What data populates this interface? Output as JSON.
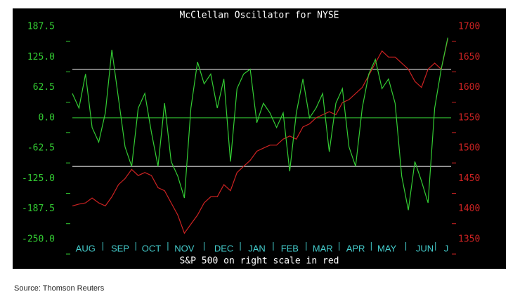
{
  "chart_data": {
    "type": "line",
    "title": "McClellan Oscillator for NYSE",
    "x_label": "S&P 500 on right scale in red",
    "xlim": [
      0,
      230
    ],
    "xticks": [
      {
        "value": 8,
        "label": "AUG"
      },
      {
        "value": 29,
        "label": "SEP"
      },
      {
        "value": 48,
        "label": "OCT"
      },
      {
        "value": 68,
        "label": "NOV"
      },
      {
        "value": 92,
        "label": "DEC"
      },
      {
        "value": 112,
        "label": "JAN"
      },
      {
        "value": 132,
        "label": "FEB"
      },
      {
        "value": 152,
        "label": "MAR"
      },
      {
        "value": 172,
        "label": "APR"
      },
      {
        "value": 191,
        "label": "MAY"
      },
      {
        "value": 214,
        "label": "JUN"
      },
      {
        "value": 227,
        "label": "J"
      }
    ],
    "ylim": [
      -250,
      187.5
    ],
    "yticks": [
      187.5,
      {
        "value": 125,
        "label": "125.0"
      },
      62.5,
      {
        "value": 0,
        "label": "0.0"
      },
      -62.5,
      {
        "value": -125,
        "label": "-125.0"
      },
      -187.5,
      {
        "value": -250,
        "label": "-250.0"
      }
    ],
    "y2lim": [
      1350,
      1700
    ],
    "y2ticks": [
      1700,
      1650,
      1600,
      1550,
      1500,
      1450,
      1400,
      1350
    ],
    "reference_lines": [
      {
        "value": 100,
        "color": "#ffffff"
      },
      {
        "value": 0,
        "color": "#33cc33"
      },
      {
        "value": -100,
        "color": "#ffffff"
      }
    ],
    "x": [
      0,
      4,
      8,
      12,
      16,
      20,
      24,
      28,
      32,
      36,
      40,
      44,
      48,
      52,
      56,
      60,
      64,
      68,
      72,
      76,
      80,
      84,
      88,
      92,
      96,
      100,
      104,
      108,
      112,
      116,
      120,
      124,
      128,
      132,
      136,
      140,
      144,
      148,
      152,
      156,
      160,
      164,
      168,
      172,
      176,
      180,
      184,
      188,
      192,
      196,
      200,
      204,
      208,
      212,
      216,
      220,
      224,
      228
    ],
    "series": [
      {
        "color": "#cc2222",
        "axis": "y2",
        "values": [
          1405,
          1408,
          1410,
          1418,
          1410,
          1405,
          1420,
          1440,
          1450,
          1465,
          1455,
          1460,
          1455,
          1435,
          1430,
          1410,
          1390,
          1360,
          1375,
          1390,
          1410,
          1420,
          1420,
          1440,
          1430,
          1460,
          1470,
          1480,
          1495,
          1500,
          1505,
          1505,
          1515,
          1520,
          1515,
          1535,
          1540,
          1550,
          1555,
          1560,
          1555,
          1575,
          1580,
          1590,
          1600,
          1620,
          1640,
          1660,
          1650,
          1650,
          1640,
          1630,
          1610,
          1600,
          1630,
          1640,
          1630,
          1680
        ]
      },
      {
        "color": "#33cc33",
        "axis": "y",
        "values": [
          50,
          20,
          90,
          -20,
          -50,
          10,
          140,
          40,
          -60,
          -100,
          20,
          50,
          -30,
          -100,
          30,
          -90,
          -120,
          -165,
          20,
          115,
          70,
          90,
          20,
          80,
          -90,
          60,
          90,
          100,
          -10,
          30,
          10,
          -20,
          10,
          -110,
          10,
          80,
          0,
          20,
          50,
          -70,
          30,
          60,
          -60,
          -100,
          20,
          90,
          120,
          60,
          80,
          30,
          -120,
          -190,
          -90,
          -130,
          -175,
          20,
          100,
          165
        ]
      }
    ]
  },
  "source": "Source:  Thomson Reuters"
}
